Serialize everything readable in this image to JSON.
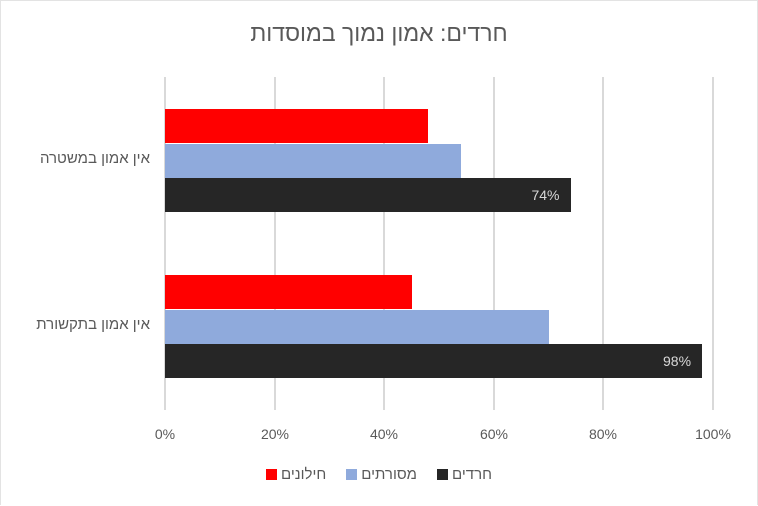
{
  "chart_data": {
    "type": "bar",
    "orientation": "horizontal",
    "title": "חרדים: אמון נמוך במוסדות",
    "categories": [
      "אין אמון במשטרה",
      "אין אמון בתקשורת"
    ],
    "series": [
      {
        "name": "חילונים",
        "color": "#ff0000",
        "values": [
          48,
          45
        ]
      },
      {
        "name": "מסורתים",
        "color": "#8faadc",
        "values": [
          54,
          70
        ]
      },
      {
        "name": "חרדים",
        "color": "#262626",
        "values": [
          74,
          98
        ],
        "data_labels": [
          "74%",
          "98%"
        ]
      }
    ],
    "xlabel": "",
    "ylabel": "",
    "xlim": [
      0,
      100
    ],
    "x_ticks": [
      "0%",
      "20%",
      "40%",
      "60%",
      "80%",
      "100%"
    ],
    "grid": "vertical",
    "legend_position": "bottom"
  },
  "legend": [
    {
      "label": "חילונים",
      "color": "#ff0000"
    },
    {
      "label": "מסורתים",
      "color": "#8faadc"
    },
    {
      "label": "חרדים",
      "color": "#262626"
    }
  ]
}
